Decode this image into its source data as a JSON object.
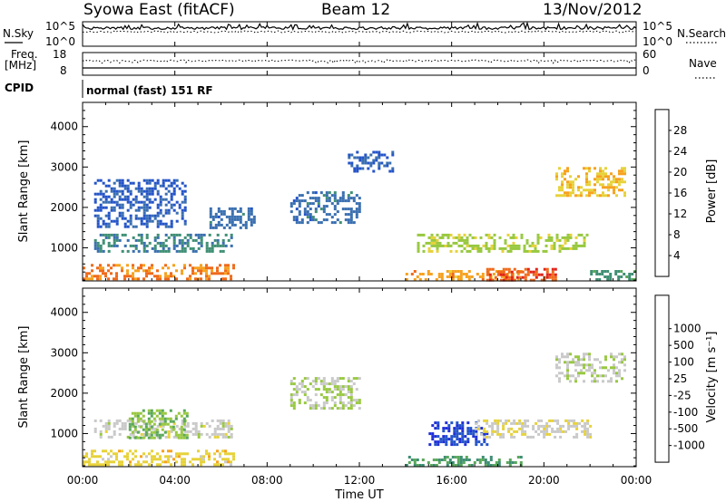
{
  "header": {
    "station": "Syowa East (fitACF)",
    "beam": "Beam 12",
    "date": "13/Nov/2012"
  },
  "noise_panel": {
    "left_label": "N.Sky",
    "right_label": "N.Search",
    "tick_high": "10^5",
    "tick_low": "10^0"
  },
  "freq_panel": {
    "left_label_line1": "Freq.",
    "left_label_line2": "[MHz]",
    "left_tick_high": "18",
    "left_tick_low": "8",
    "right_label": "Nave",
    "right_tick_high": "60",
    "right_tick_low": "0"
  },
  "cpid": {
    "label": "CPID",
    "value": "normal (fast) 151 RF"
  },
  "power_panel": {
    "ylabel": "Slant Range [km]",
    "cbar_label": "Power [dB]"
  },
  "velocity_panel": {
    "ylabel": "Slant Range [km]",
    "cbar_label": "Velocity [m s⁻¹]"
  },
  "xaxis": {
    "label": "Time UT",
    "ticks": [
      "00:00",
      "04:00",
      "08:00",
      "12:00",
      "16:00",
      "20:00",
      "00:00"
    ]
  },
  "colors": {
    "power_scale": [
      "#1f2fd8",
      "#2454c8",
      "#3a6fb0",
      "#3f8f74",
      "#5aa85a",
      "#98c840",
      "#e7d23a",
      "#f6a21f",
      "#ef6a1a",
      "#e2231a"
    ],
    "velocity_scale": [
      "#e2231a",
      "#ef6a1a",
      "#f6a21f",
      "#e7d23a",
      "#c9c9c9",
      "#98c840",
      "#5aa85a",
      "#3f8f74",
      "#2454c8",
      "#1f2fd8"
    ]
  },
  "chart_data": [
    {
      "type": "heatmap",
      "title": "",
      "xlabel": "",
      "ylabel": "Slant Range [km]",
      "xlim": [
        "00:00",
        "24:00"
      ],
      "ylim": [
        180,
        4600
      ],
      "yticks": [
        1000,
        2000,
        3000,
        4000
      ],
      "colorbar": {
        "label": "Power [dB]",
        "range": [
          0,
          32
        ],
        "ticks": [
          4,
          8,
          12,
          16,
          20,
          24,
          28
        ]
      },
      "regions": [
        {
          "t": [
            0.0,
            6.5
          ],
          "range": [
            200,
            600
          ],
          "value": 26
        },
        {
          "t": [
            0.5,
            6.5
          ],
          "range": [
            900,
            1350
          ],
          "value": 10
        },
        {
          "t": [
            0.5,
            4.5
          ],
          "range": [
            1500,
            2700
          ],
          "value": 6
        },
        {
          "t": [
            5.5,
            7.5
          ],
          "range": [
            1500,
            2000
          ],
          "value": 8
        },
        {
          "t": [
            9.0,
            12.0
          ],
          "range": [
            1600,
            2400
          ],
          "value": 8
        },
        {
          "t": [
            11.5,
            13.5
          ],
          "range": [
            2900,
            3400
          ],
          "value": 6
        },
        {
          "t": [
            14.0,
            19.0
          ],
          "range": [
            200,
            450
          ],
          "value": 24
        },
        {
          "t": [
            14.5,
            22.0
          ],
          "range": [
            900,
            1350
          ],
          "value": 18
        },
        {
          "t": [
            17.5,
            20.5
          ],
          "range": [
            200,
            500
          ],
          "value": 28
        },
        {
          "t": [
            20.5,
            23.5
          ],
          "range": [
            2300,
            3000
          ],
          "value": 22
        },
        {
          "t": [
            22.0,
            24.0
          ],
          "range": [
            200,
            450
          ],
          "value": 12
        }
      ]
    },
    {
      "type": "heatmap",
      "title": "",
      "xlabel": "Time UT",
      "ylabel": "Slant Range [km]",
      "xlim": [
        "00:00",
        "24:00"
      ],
      "ylim": [
        180,
        4600
      ],
      "yticks": [
        1000,
        2000,
        3000,
        4000
      ],
      "colorbar": {
        "label": "Velocity [m s⁻¹]",
        "range": [
          -1000,
          1000
        ],
        "ticks": [
          -1000,
          -500,
          -100,
          -25,
          25,
          100,
          500,
          1000
        ]
      },
      "regions": [
        {
          "t": [
            0.0,
            6.5
          ],
          "range": [
            200,
            600
          ],
          "value": -300
        },
        {
          "t": [
            0.5,
            6.5
          ],
          "range": [
            900,
            1350
          ],
          "value": -100
        },
        {
          "t": [
            2.0,
            4.5
          ],
          "range": [
            900,
            1600
          ],
          "value": 200
        },
        {
          "t": [
            9.0,
            12.0
          ],
          "range": [
            1600,
            2400
          ],
          "value": 0
        },
        {
          "t": [
            14.0,
            19.0
          ],
          "range": [
            200,
            450
          ],
          "value": 400
        },
        {
          "t": [
            15.0,
            17.5
          ],
          "range": [
            700,
            1300
          ],
          "value": 800
        },
        {
          "t": [
            17.0,
            22.0
          ],
          "range": [
            900,
            1350
          ],
          "value": -150
        },
        {
          "t": [
            20.5,
            23.5
          ],
          "range": [
            2300,
            3000
          ],
          "value": -50
        }
      ]
    }
  ]
}
